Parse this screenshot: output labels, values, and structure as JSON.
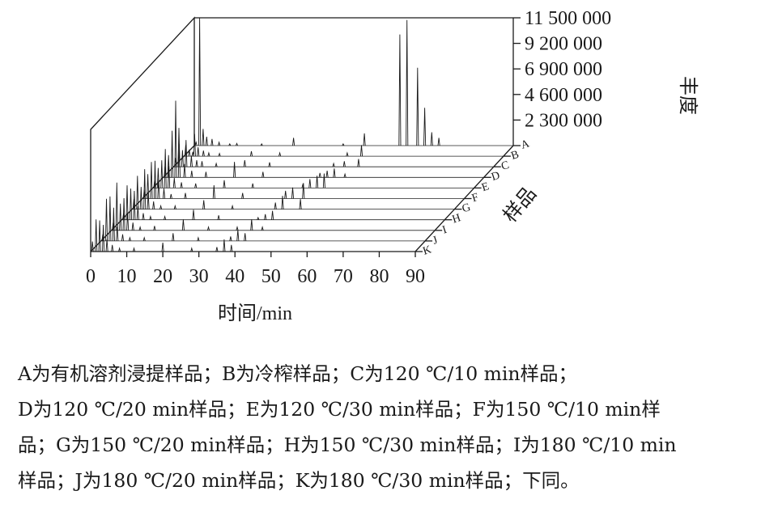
{
  "chart_data": {
    "type": "line",
    "xlabel": "时间/min",
    "ylabel": "丰度",
    "zlabel": "样品",
    "x_ticks": [
      "0",
      "10",
      "20",
      "30",
      "40",
      "50",
      "60",
      "70",
      "80",
      "90"
    ],
    "xlim": [
      0,
      90
    ],
    "z_ticks": [
      "11 500 000",
      "9 200 000",
      "6 900 000",
      "4 600 000",
      "2 300 000"
    ],
    "zlim": [
      0,
      11500000
    ],
    "samples": [
      "A",
      "B",
      "C",
      "D",
      "E",
      "F",
      "G",
      "H",
      "I",
      "J",
      "K"
    ],
    "series": [
      {
        "name": "A",
        "peaks": [
          [
            0.5,
            300000
          ],
          [
            1.5,
            11500000
          ],
          [
            2.5,
            1500000
          ],
          [
            3.5,
            800000
          ],
          [
            5,
            600000
          ],
          [
            7,
            300000
          ],
          [
            10,
            150000
          ],
          [
            12,
            200000
          ],
          [
            19,
            150000
          ],
          [
            28,
            700000
          ],
          [
            42,
            150000
          ],
          [
            48,
            1100000
          ],
          [
            58,
            10000000
          ],
          [
            60,
            11300000
          ],
          [
            63,
            7000000
          ],
          [
            65,
            3400000
          ],
          [
            67,
            1200000
          ],
          [
            69,
            700000
          ]
        ]
      },
      {
        "name": "B",
        "peaks": [
          [
            0.5,
            1000000
          ],
          [
            1.5,
            600000
          ],
          [
            2.5,
            400000
          ],
          [
            3,
            2000000
          ],
          [
            4,
            800000
          ],
          [
            5.5,
            500000
          ],
          [
            7,
            300000
          ],
          [
            10,
            250000
          ],
          [
            19,
            450000
          ],
          [
            27,
            300000
          ],
          [
            46,
            300000
          ],
          [
            50,
            1000000
          ]
        ]
      },
      {
        "name": "C",
        "peaks": [
          [
            0.5,
            800000
          ],
          [
            1.5,
            3500000
          ],
          [
            2.5,
            1500000
          ],
          [
            3.5,
            2400000
          ],
          [
            5,
            1000000
          ],
          [
            6.5,
            600000
          ],
          [
            8,
            500000
          ],
          [
            12,
            300000
          ],
          [
            20,
            600000
          ],
          [
            27,
            400000
          ],
          [
            45,
            300000
          ],
          [
            48,
            500000
          ],
          [
            52,
            700000
          ]
        ]
      },
      {
        "name": "D",
        "peaks": [
          [
            0.5,
            1000000
          ],
          [
            1.5,
            2000000
          ],
          [
            2.5,
            4200000
          ],
          [
            3.5,
            6900000
          ],
          [
            4.5,
            3000000
          ],
          [
            6,
            1200000
          ],
          [
            8,
            600000
          ],
          [
            12,
            500000
          ],
          [
            20,
            1400000
          ],
          [
            28,
            500000
          ],
          [
            44,
            400000
          ],
          [
            46,
            600000
          ],
          [
            48,
            800000
          ],
          [
            51,
            300000
          ]
        ]
      },
      {
        "name": "E",
        "peaks": [
          [
            0.5,
            700000
          ],
          [
            1.5,
            1800000
          ],
          [
            2.5,
            2500000
          ],
          [
            3.5,
            3500000
          ],
          [
            4.5,
            2000000
          ],
          [
            6,
            900000
          ],
          [
            8,
            500000
          ],
          [
            12,
            400000
          ],
          [
            20,
            700000
          ],
          [
            28,
            400000
          ],
          [
            42,
            300000
          ],
          [
            44,
            800000
          ],
          [
            46,
            1100000
          ],
          [
            48,
            1300000
          ]
        ]
      },
      {
        "name": "F",
        "peaks": [
          [
            0.5,
            800000
          ],
          [
            1.5,
            2200000
          ],
          [
            2.5,
            3300000
          ],
          [
            3.5,
            3400000
          ],
          [
            4.5,
            1800000
          ],
          [
            6,
            900000
          ],
          [
            8,
            400000
          ],
          [
            12,
            500000
          ],
          [
            20,
            1200000
          ],
          [
            28,
            500000
          ],
          [
            40,
            700000
          ],
          [
            42,
            1000000
          ],
          [
            45,
            1400000
          ]
        ]
      },
      {
        "name": "G",
        "peaks": [
          [
            0.5,
            900000
          ],
          [
            1.5,
            3000000
          ],
          [
            2.5,
            2000000
          ],
          [
            3.5,
            3600000
          ],
          [
            4.5,
            1400000
          ],
          [
            6,
            700000
          ],
          [
            8,
            300000
          ],
          [
            12,
            300000
          ],
          [
            20,
            800000
          ],
          [
            28,
            300000
          ],
          [
            40,
            600000
          ],
          [
            42,
            1200000
          ],
          [
            47,
            900000
          ]
        ]
      },
      {
        "name": "H",
        "peaks": [
          [
            0.5,
            600000
          ],
          [
            1.5,
            3100000
          ],
          [
            2.5,
            2800000
          ],
          [
            3.5,
            2600000
          ],
          [
            4.5,
            1200000
          ],
          [
            6,
            600000
          ],
          [
            8,
            300000
          ],
          [
            12,
            300000
          ],
          [
            20,
            900000
          ],
          [
            27,
            400000
          ],
          [
            38,
            200000
          ],
          [
            40,
            500000
          ],
          [
            42,
            800000
          ]
        ]
      },
      {
        "name": "I",
        "peaks": [
          [
            0.5,
            700000
          ],
          [
            1.5,
            4300000
          ],
          [
            2.5,
            2400000
          ],
          [
            3.5,
            2900000
          ],
          [
            4.5,
            1600000
          ],
          [
            6,
            700000
          ],
          [
            8,
            300000
          ],
          [
            12,
            400000
          ],
          [
            20,
            1000000
          ],
          [
            27,
            300000
          ],
          [
            35,
            300000
          ],
          [
            39,
            1000000
          ],
          [
            42,
            300000
          ]
        ]
      },
      {
        "name": "J",
        "peaks": [
          [
            0.5,
            600000
          ],
          [
            1.5,
            3800000
          ],
          [
            2.5,
            4000000
          ],
          [
            3.5,
            3000000
          ],
          [
            4.5,
            1300000
          ],
          [
            6,
            600000
          ],
          [
            8,
            300000
          ],
          [
            12,
            300000
          ],
          [
            20,
            700000
          ],
          [
            27,
            300000
          ],
          [
            36,
            400000
          ],
          [
            38,
            1000000
          ],
          [
            40,
            700000
          ]
        ]
      },
      {
        "name": "K",
        "peaks": [
          [
            0.5,
            900000
          ],
          [
            1.5,
            2900000
          ],
          [
            2.5,
            2800000
          ],
          [
            3.5,
            2400000
          ],
          [
            4.5,
            1100000
          ],
          [
            6,
            600000
          ],
          [
            8,
            300000
          ],
          [
            12,
            300000
          ],
          [
            20,
            800000
          ],
          [
            28,
            300000
          ],
          [
            35,
            400000
          ],
          [
            37,
            1100000
          ],
          [
            39,
            600000
          ]
        ]
      }
    ]
  },
  "caption_lines": [
    "A为有机溶剂浸提样品；B为冷榨样品；C为120 ℃/10 min样品；",
    "D为120 ℃/20 min样品；E为120 ℃/30 min样品；F为150 ℃/10 min样",
    "品；G为150 ℃/20 min样品；H为150 ℃/30 min样品；I为180 ℃/10 min",
    "样品；J为180 ℃/20 min样品；K为180 ℃/30 min样品；下同。"
  ]
}
